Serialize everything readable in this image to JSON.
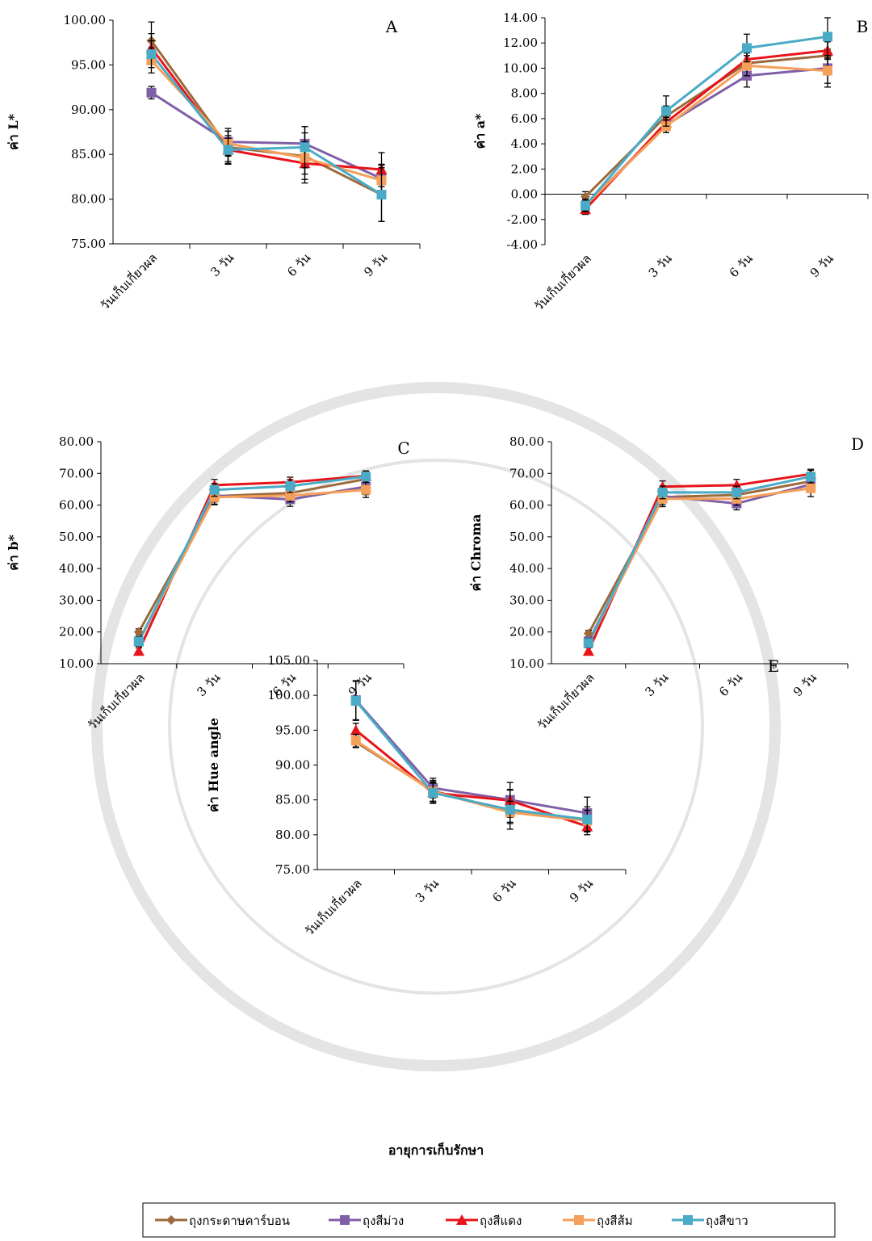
{
  "chart_data": [
    {
      "type": "line",
      "label": "A",
      "y_label": "ค่า L*",
      "categories": [
        "วันเก็บเกี่ยวผล",
        "3 วัน",
        "6 วัน",
        "9 วัน"
      ],
      "series": [
        {
          "values": [
            97.7,
            85.8,
            84.8,
            80.5
          ],
          "errors": [
            2.1,
            1.8,
            2.6,
            3.0
          ]
        },
        {
          "values": [
            91.9,
            86.4,
            86.2,
            82.3
          ],
          "errors": [
            0.7,
            1.5,
            1.9,
            1.6
          ]
        },
        {
          "values": [
            96.9,
            85.5,
            84.0,
            83.3
          ],
          "errors": [
            1.6,
            1.3,
            2.2,
            1.9
          ]
        },
        {
          "values": [
            95.5,
            86.2,
            84.6,
            82.1
          ],
          "errors": [
            1.4,
            1.4,
            1.8,
            1.7
          ]
        },
        {
          "values": [
            96.2,
            85.5,
            85.8,
            80.5
          ],
          "errors": [
            1.5,
            1.6,
            2.3,
            3.0
          ]
        }
      ],
      "ylim": [
        75,
        100
      ],
      "yticks": [
        {
          "value": 75,
          "label": "75.00"
        },
        {
          "value": 80,
          "label": "80.00"
        },
        {
          "value": 85,
          "label": "85.00"
        },
        {
          "value": 90,
          "label": "90.00"
        },
        {
          "value": 95,
          "label": "95.00"
        },
        {
          "value": 100,
          "label": "100.00"
        }
      ]
    },
    {
      "type": "line",
      "label": "B",
      "y_label": "ค่า a*",
      "categories": [
        "วันเก็บเกี่ยวผล",
        "3 วัน",
        "6 วัน",
        "9 วัน"
      ],
      "series": [
        {
          "values": [
            -0.2,
            6.2,
            10.4,
            11.0
          ],
          "errors": [
            0.4,
            0.8,
            0.8,
            1.1
          ]
        },
        {
          "values": [
            -0.9,
            5.5,
            9.4,
            10.0
          ],
          "errors": [
            0.5,
            0.6,
            0.9,
            1.5
          ]
        },
        {
          "values": [
            -1.2,
            5.7,
            10.7,
            11.4
          ],
          "errors": [
            0.4,
            0.6,
            0.7,
            0.7
          ]
        },
        {
          "values": [
            -0.9,
            5.4,
            10.2,
            9.8
          ],
          "errors": [
            0.4,
            0.5,
            0.8,
            1.0
          ]
        },
        {
          "values": [
            -0.9,
            6.6,
            11.6,
            12.5
          ],
          "errors": [
            0.5,
            1.2,
            1.1,
            1.5
          ]
        }
      ],
      "ylim": [
        -4,
        14
      ],
      "yticks": [
        {
          "value": -4,
          "label": "-4.00"
        },
        {
          "value": -2,
          "label": "-2.00"
        },
        {
          "value": 0,
          "label": "0.00"
        },
        {
          "value": 2,
          "label": "2.00"
        },
        {
          "value": 4,
          "label": "4.00"
        },
        {
          "value": 6,
          "label": "6.00"
        },
        {
          "value": 8,
          "label": "8.00"
        },
        {
          "value": 10,
          "label": "10.00"
        },
        {
          "value": 12,
          "label": "12.00"
        },
        {
          "value": 14,
          "label": "14.00"
        }
      ]
    },
    {
      "type": "line",
      "label": "C",
      "y_label": "ค่า b*",
      "categories": [
        "วันเก็บเกี่ยวผล",
        "3 วัน",
        "6 วัน",
        "9 วัน"
      ],
      "series": [
        {
          "values": [
            20.0,
            62.8,
            63.8,
            68.2
          ],
          "errors": [
            1.0,
            2.5,
            2.0,
            1.8
          ]
        },
        {
          "values": [
            17.0,
            63.0,
            61.8,
            65.8
          ],
          "errors": [
            1.2,
            2.0,
            2.2,
            2.5
          ]
        },
        {
          "values": [
            14.0,
            66.3,
            67.2,
            69.2
          ],
          "errors": [
            1.0,
            1.8,
            1.6,
            1.5
          ]
        },
        {
          "values": [
            17.0,
            62.5,
            63.0,
            64.8
          ],
          "errors": [
            1.5,
            2.4,
            2.0,
            2.4
          ]
        },
        {
          "values": [
            17.0,
            64.8,
            66.0,
            69.0
          ],
          "errors": [
            1.5,
            2.0,
            2.0,
            1.8
          ]
        }
      ],
      "ylim": [
        10,
        80
      ],
      "yticks": [
        {
          "value": 10,
          "label": "10.00"
        },
        {
          "value": 20,
          "label": "20.00"
        },
        {
          "value": 30,
          "label": "30.00"
        },
        {
          "value": 40,
          "label": "40.00"
        },
        {
          "value": 50,
          "label": "50.00"
        },
        {
          "value": 60,
          "label": "60.00"
        },
        {
          "value": 70,
          "label": "70.00"
        },
        {
          "value": 80,
          "label": "80.00"
        }
      ]
    },
    {
      "type": "line",
      "label": "D",
      "y_label": "ค่า Chroma",
      "categories": [
        "วันเก็บเกี่ยวผล",
        "3 วัน",
        "6 วัน",
        "9 วัน"
      ],
      "series": [
        {
          "values": [
            19.5,
            62.5,
            63.2,
            67.5
          ],
          "errors": [
            1.0,
            2.4,
            2.0,
            1.8
          ]
        },
        {
          "values": [
            17.0,
            62.8,
            60.5,
            66.5
          ],
          "errors": [
            1.2,
            2.0,
            2.0,
            2.5
          ]
        },
        {
          "values": [
            14.0,
            65.8,
            66.3,
            69.8
          ],
          "errors": [
            1.0,
            1.8,
            1.8,
            1.5
          ]
        },
        {
          "values": [
            16.5,
            62.0,
            62.0,
            65.3
          ],
          "errors": [
            1.4,
            2.5,
            2.0,
            2.6
          ]
        },
        {
          "values": [
            16.5,
            64.0,
            64.0,
            69.0
          ],
          "errors": [
            1.4,
            2.0,
            2.0,
            2.0
          ]
        }
      ],
      "ylim": [
        10,
        80
      ],
      "yticks": [
        {
          "value": 10,
          "label": "10.00"
        },
        {
          "value": 20,
          "label": "20.00"
        },
        {
          "value": 30,
          "label": "30.00"
        },
        {
          "value": 40,
          "label": "40.00"
        },
        {
          "value": 50,
          "label": "50.00"
        },
        {
          "value": 60,
          "label": "60.00"
        },
        {
          "value": 70,
          "label": "70.00"
        },
        {
          "value": 80,
          "label": "80.00"
        }
      ]
    },
    {
      "type": "line",
      "label": "E",
      "y_label": "ค่า Hue angle",
      "categories": [
        "วันเก็บเกี่ยวผล",
        "3 วัน",
        "6 วัน",
        "9 วัน"
      ],
      "series": [
        {
          "values": [
            93.3,
            86.3,
            83.3,
            82.0
          ],
          "errors": [
            0.8,
            1.5,
            1.5,
            1.5
          ]
        },
        {
          "values": [
            99.3,
            86.7,
            85.0,
            83.1
          ],
          "errors": [
            2.8,
            1.4,
            2.5,
            2.3
          ]
        },
        {
          "values": [
            95.0,
            86.0,
            84.9,
            81.2
          ],
          "errors": [
            1.0,
            1.4,
            1.6,
            1.2
          ]
        },
        {
          "values": [
            93.5,
            86.2,
            83.2,
            82.0
          ],
          "errors": [
            0.9,
            1.4,
            1.6,
            1.5
          ]
        },
        {
          "values": [
            99.2,
            86.0,
            83.6,
            82.2
          ],
          "errors": [
            2.8,
            1.5,
            2.8,
            1.8
          ]
        }
      ],
      "ylim": [
        75,
        105
      ],
      "yticks": [
        {
          "value": 75,
          "label": "75.00"
        },
        {
          "value": 80,
          "label": "80.00"
        },
        {
          "value": 85,
          "label": "85.00"
        },
        {
          "value": 90,
          "label": "90.00"
        },
        {
          "value": 95,
          "label": "95.00"
        },
        {
          "value": 100,
          "label": "100.00"
        },
        {
          "value": 105,
          "label": "105.00"
        }
      ]
    }
  ],
  "x_label": "อายุการเก็บรักษา",
  "legend": {
    "series": [
      {
        "name": "ถุงกระดาษคาร์บอน",
        "color": "#9c6a3c",
        "marker": "diamond"
      },
      {
        "name": "ถุงสีม่วง",
        "color": "#7f5fa8",
        "marker": "square"
      },
      {
        "name": "ถุงสีแดง",
        "color": "#e8141a",
        "marker": "triangle"
      },
      {
        "name": "ถุงสีส้ม",
        "color": "#f5a05a",
        "marker": "square"
      },
      {
        "name": "ถุงสีขาว",
        "color": "#4aabc6",
        "marker": "square"
      }
    ]
  }
}
